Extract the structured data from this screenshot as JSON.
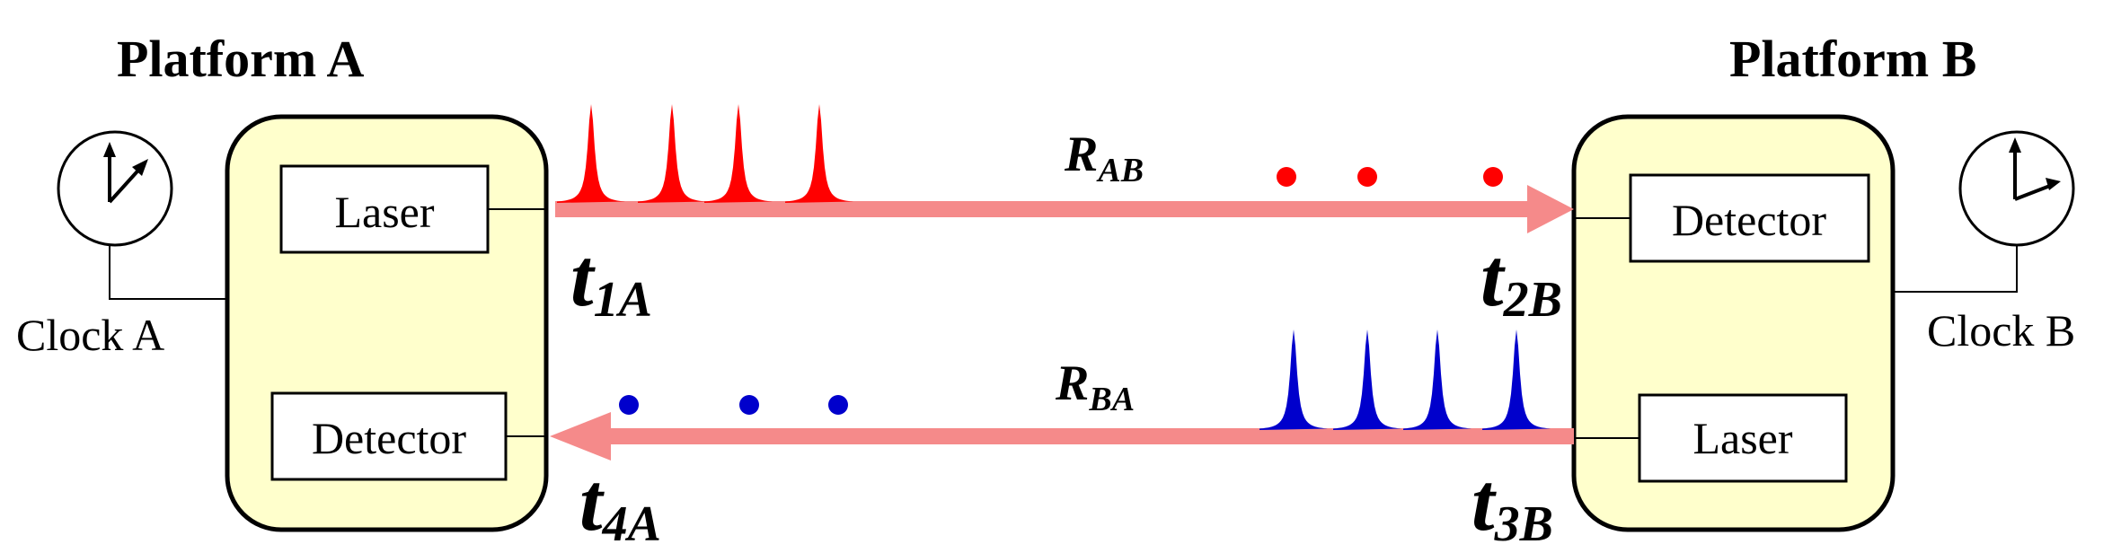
{
  "platforms": {
    "a": {
      "title": "Platform A",
      "laser": "Laser",
      "detector": "Detector",
      "clock": "Clock A"
    },
    "b": {
      "title": "Platform B",
      "laser": "Laser",
      "detector": "Detector",
      "clock": "Clock B"
    }
  },
  "links": {
    "forward": {
      "range_main": "R",
      "range_sub": "AB",
      "pulse_count": 4,
      "dot_count": 3
    },
    "backward": {
      "range_main": "R",
      "range_sub": "BA",
      "pulse_count": 4,
      "dot_count": 3
    }
  },
  "timestamps": {
    "t1": {
      "main": "t",
      "sub": "1A"
    },
    "t2": {
      "main": "t",
      "sub": "2B"
    },
    "t3": {
      "main": "t",
      "sub": "3B"
    },
    "t4": {
      "main": "t",
      "sub": "4A"
    }
  },
  "colors": {
    "platform_fill": "#ffffcc",
    "beam": "#f58a8a",
    "forward_pulse": "#ff0000",
    "backward_pulse": "#0000cc"
  }
}
